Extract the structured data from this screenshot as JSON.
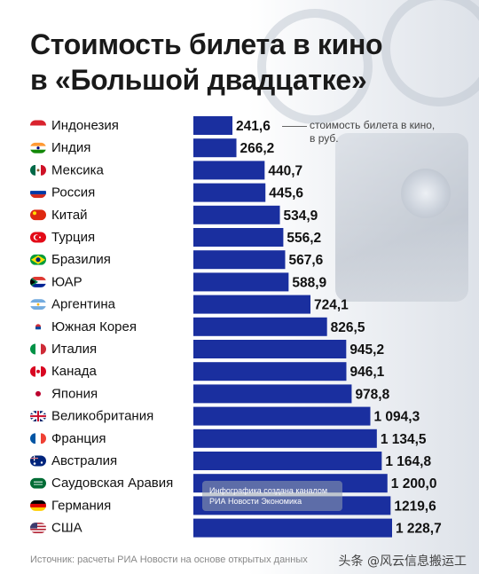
{
  "title_line1": "Стоимость билета в кино",
  "title_line2": "в «Большой двадцатке»",
  "legend_note_line1": "стоимость билета в кино,",
  "legend_note_line2": "в руб.",
  "watermark_line1": "Инфографика создана каналом",
  "watermark_line2": "РИА Новости Экономика",
  "source": "Источник: расчеты РИА Новости на основе открытых данных",
  "credit": "头条 @风云信息搬运工",
  "colors": {
    "bar": "#1a2f9f",
    "title": "#1a1a1a",
    "text": "#111111"
  },
  "chart_data": {
    "type": "bar",
    "orientation": "horizontal",
    "categories": [
      "Индонезия",
      "Индия",
      "Мексика",
      "Россия",
      "Китай",
      "Турция",
      "Бразилия",
      "ЮАР",
      "Аргентина",
      "Южная Корея",
      "Италия",
      "Канада",
      "Япония",
      "Великобритания",
      "Франция",
      "Австралия",
      "Саудовская Аравия",
      "Германия",
      "США"
    ],
    "flags": [
      "indonesia-flag",
      "india-flag",
      "mexico-flag",
      "russia-flag",
      "china-flag",
      "turkey-flag",
      "brazil-flag",
      "south-africa-flag",
      "argentina-flag",
      "south-korea-flag",
      "italy-flag",
      "canada-flag",
      "japan-flag",
      "uk-flag",
      "france-flag",
      "australia-flag",
      "saudi-arabia-flag",
      "germany-flag",
      "usa-flag"
    ],
    "values": [
      241.6,
      266.2,
      440.7,
      445.6,
      534.9,
      556.2,
      567.6,
      588.9,
      724.1,
      826.5,
      945.2,
      946.1,
      978.8,
      1094.3,
      1134.5,
      1164.8,
      1200.0,
      1219.6,
      1228.7
    ],
    "value_labels": [
      "241,6",
      "266,2",
      "440,7",
      "445,6",
      "534,9",
      "556,2",
      "567,6",
      "588,9",
      "724,1",
      "826,5",
      "945,2",
      "946,1",
      "978,8",
      "1 094,3",
      "1 134,5",
      "1 164,8",
      "1 200,0",
      "1219,6",
      "1 228,7"
    ],
    "unit": "руб.",
    "xlim": [
      0,
      1228.7
    ],
    "grid": false,
    "legend": "none"
  }
}
